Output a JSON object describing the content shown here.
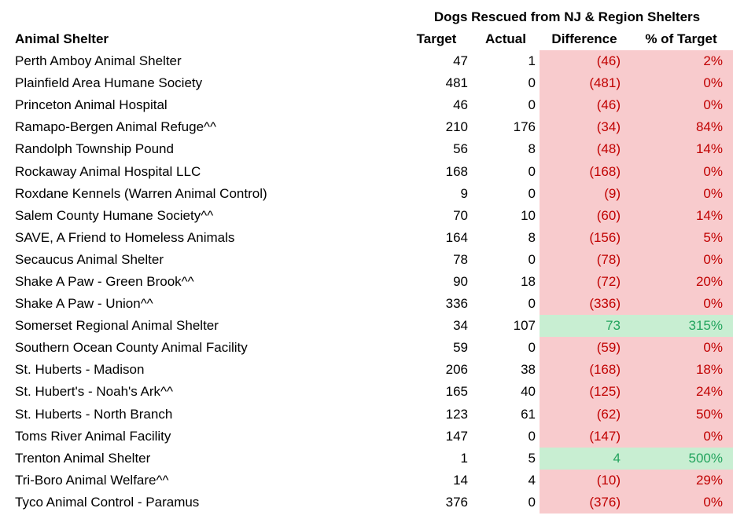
{
  "table": {
    "title": "Dogs Rescued from NJ & Region Shelters",
    "columns": {
      "shelter": "Animal Shelter",
      "target": "Target",
      "actual": "Actual",
      "difference": "Difference",
      "pct_of_target": "% of Target"
    },
    "rows": [
      {
        "name": "Perth Amboy Animal Shelter",
        "target": "47",
        "actual": "1",
        "difference": "(46)",
        "pct_of_target": "2%",
        "status": "bad"
      },
      {
        "name": "Plainfield Area Humane Society",
        "target": "481",
        "actual": "0",
        "difference": "(481)",
        "pct_of_target": "0%",
        "status": "bad"
      },
      {
        "name": "Princeton Animal Hospital",
        "target": "46",
        "actual": "0",
        "difference": "(46)",
        "pct_of_target": "0%",
        "status": "bad"
      },
      {
        "name": "Ramapo-Bergen Animal Refuge^^",
        "target": "210",
        "actual": "176",
        "difference": "(34)",
        "pct_of_target": "84%",
        "status": "bad"
      },
      {
        "name": "Randolph Township Pound",
        "target": "56",
        "actual": "8",
        "difference": "(48)",
        "pct_of_target": "14%",
        "status": "bad"
      },
      {
        "name": "Rockaway Animal Hospital LLC",
        "target": "168",
        "actual": "0",
        "difference": "(168)",
        "pct_of_target": "0%",
        "status": "bad"
      },
      {
        "name": "Roxdane Kennels (Warren Animal Control)",
        "target": "9",
        "actual": "0",
        "difference": "(9)",
        "pct_of_target": "0%",
        "status": "bad"
      },
      {
        "name": "Salem County Humane Society^^",
        "target": "70",
        "actual": "10",
        "difference": "(60)",
        "pct_of_target": "14%",
        "status": "bad"
      },
      {
        "name": "SAVE, A Friend to Homeless Animals",
        "target": "164",
        "actual": "8",
        "difference": "(156)",
        "pct_of_target": "5%",
        "status": "bad"
      },
      {
        "name": "Secaucus Animal Shelter",
        "target": "78",
        "actual": "0",
        "difference": "(78)",
        "pct_of_target": "0%",
        "status": "bad"
      },
      {
        "name": "Shake A Paw - Green Brook^^",
        "target": "90",
        "actual": "18",
        "difference": "(72)",
        "pct_of_target": "20%",
        "status": "bad"
      },
      {
        "name": "Shake A Paw - Union^^",
        "target": "336",
        "actual": "0",
        "difference": "(336)",
        "pct_of_target": "0%",
        "status": "bad"
      },
      {
        "name": "Somerset Regional Animal Shelter",
        "target": "34",
        "actual": "107",
        "difference": "73",
        "pct_of_target": "315%",
        "status": "good"
      },
      {
        "name": "Southern Ocean County Animal Facility",
        "target": "59",
        "actual": "0",
        "difference": "(59)",
        "pct_of_target": "0%",
        "status": "bad"
      },
      {
        "name": "St. Huberts - Madison",
        "target": "206",
        "actual": "38",
        "difference": "(168)",
        "pct_of_target": "18%",
        "status": "bad"
      },
      {
        "name": "St. Hubert's - Noah's Ark^^",
        "target": "165",
        "actual": "40",
        "difference": "(125)",
        "pct_of_target": "24%",
        "status": "bad"
      },
      {
        "name": "St. Huberts - North Branch",
        "target": "123",
        "actual": "61",
        "difference": "(62)",
        "pct_of_target": "50%",
        "status": "bad"
      },
      {
        "name": "Toms River Animal Facility",
        "target": "147",
        "actual": "0",
        "difference": "(147)",
        "pct_of_target": "0%",
        "status": "bad"
      },
      {
        "name": "Trenton Animal Shelter",
        "target": "1",
        "actual": "5",
        "difference": "4",
        "pct_of_target": "500%",
        "status": "good"
      },
      {
        "name": "Tri-Boro Animal Welfare^^",
        "target": "14",
        "actual": "4",
        "difference": "(10)",
        "pct_of_target": "29%",
        "status": "bad"
      },
      {
        "name": "Tyco Animal Control - Paramus",
        "target": "376",
        "actual": "0",
        "difference": "(376)",
        "pct_of_target": "0%",
        "status": "bad"
      }
    ]
  },
  "colors": {
    "pink_fill": "#f8cbcd",
    "red_text": "#c00000",
    "green_fill": "#c8eed2",
    "green_text": "#23a45e",
    "text": "#000000",
    "background": "#ffffff"
  }
}
